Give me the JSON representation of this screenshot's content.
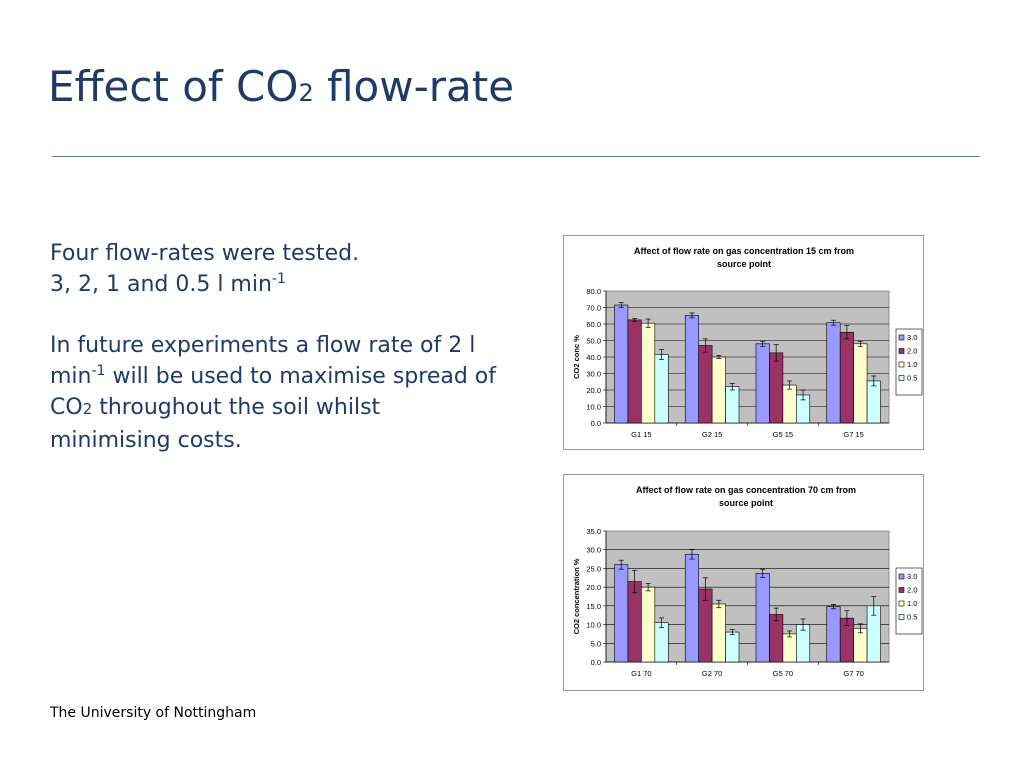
{
  "slide": {
    "title_main": "Effect of CO",
    "title_sub": "2",
    "title_end": " flow-rate",
    "body": {
      "line1": "Four flow-rates were tested.",
      "line2": "3, 2, 1 and 0.5 l min",
      "line2_sup": "-1",
      "para2_a": "In future experiments a flow rate of 2 l min",
      "para2_sup": "-1",
      "para2_b": " will be used to maximise spread of CO",
      "para2_sub": "2",
      "para2_c": " throughout the soil whilst minimising costs."
    },
    "footer": "The University of Nottingham"
  },
  "chart_data": [
    {
      "type": "bar",
      "title": "Affect of flow rate on gas concentration 15 cm from source point",
      "title_lines": [
        "Affect of flow rate on gas concentration 15 cm from",
        "source point"
      ],
      "xlabel": "",
      "ylabel": "CO2 conc %",
      "ylim": [
        0,
        80
      ],
      "yticks": [
        "0.0",
        "10.0",
        "20.0",
        "30.0",
        "40.0",
        "50.0",
        "60.0",
        "70.0",
        "80.0"
      ],
      "grid": true,
      "legend_position": "right",
      "categories": [
        "G1 15",
        "G2 15",
        "G5 15",
        "G7 15"
      ],
      "series": [
        {
          "name": "3.0",
          "color": "#9999ff",
          "values": [
            71.5,
            65.2,
            48.0,
            60.8
          ],
          "errors": [
            1.5,
            1.5,
            1.5,
            1.5
          ]
        },
        {
          "name": "2.0",
          "color": "#993366",
          "values": [
            62.5,
            47.0,
            42.5,
            55.0
          ],
          "errors": [
            0.8,
            4.0,
            5.0,
            4.0
          ]
        },
        {
          "name": "1.0",
          "color": "#ffffcc",
          "values": [
            60.5,
            40.0,
            23.0,
            48.0
          ],
          "errors": [
            2.5,
            1.0,
            2.5,
            1.5
          ]
        },
        {
          "name": "0.5",
          "color": "#ccffff",
          "values": [
            41.5,
            22.0,
            17.0,
            25.5
          ],
          "errors": [
            3.0,
            2.0,
            3.0,
            3.0
          ]
        }
      ]
    },
    {
      "type": "bar",
      "title": "Affect of flow rate on gas concentration 70 cm from source point",
      "title_lines": [
        "Affect of flow rate on gas concentration 70 cm from",
        "source point"
      ],
      "xlabel": "",
      "ylabel": "CO2 concentration %",
      "ylim": [
        0,
        35
      ],
      "yticks": [
        "0.0",
        "5.0",
        "10.0",
        "15.0",
        "20.0",
        "25.0",
        "30.0",
        "35.0"
      ],
      "grid": true,
      "legend_position": "right",
      "categories": [
        "G1 70",
        "G2 70",
        "G5 70",
        "G7 70"
      ],
      "series": [
        {
          "name": "3.0",
          "color": "#9999ff",
          "values": [
            26.0,
            28.8,
            23.7,
            14.8
          ],
          "errors": [
            1.2,
            1.3,
            1.1,
            0.6
          ]
        },
        {
          "name": "2.0",
          "color": "#993366",
          "values": [
            21.5,
            19.5,
            12.7,
            11.7
          ],
          "errors": [
            3.0,
            3.0,
            1.7,
            2.0
          ]
        },
        {
          "name": "1.0",
          "color": "#ffffcc",
          "values": [
            20.0,
            15.5,
            7.5,
            9.0
          ],
          "errors": [
            1.0,
            1.0,
            0.8,
            1.2
          ]
        },
        {
          "name": "0.5",
          "color": "#ccffff",
          "values": [
            10.5,
            8.0,
            10.0,
            15.0
          ],
          "errors": [
            1.3,
            0.7,
            1.5,
            2.5
          ]
        }
      ]
    }
  ]
}
